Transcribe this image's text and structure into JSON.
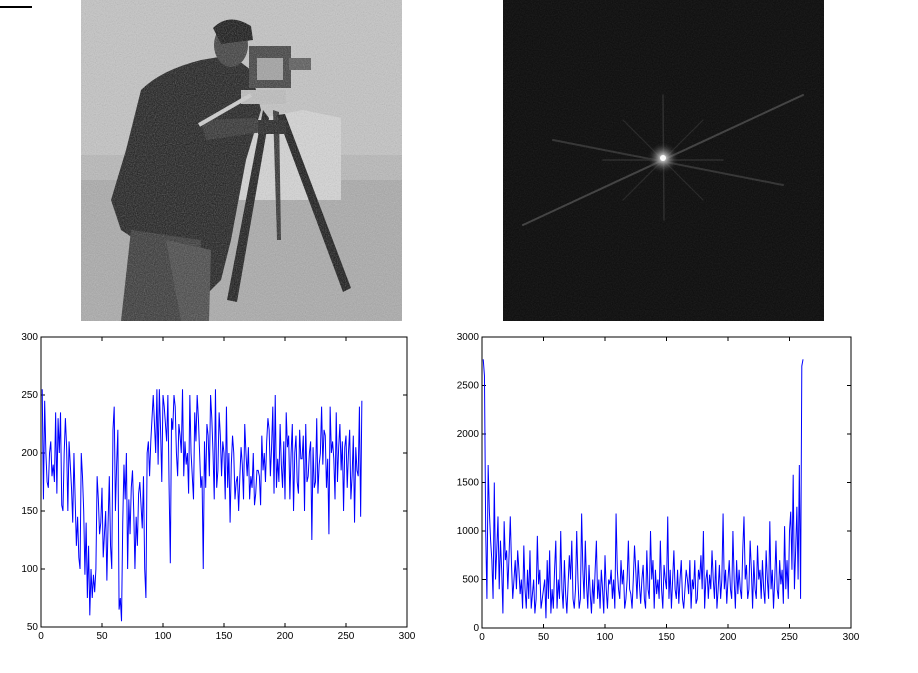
{
  "images": [
    {
      "name": "noisy-cameraman-photo"
    },
    {
      "name": "fft-magnitude-spectrum"
    }
  ],
  "chart_data": [
    {
      "type": "line",
      "color": "#0000ff",
      "xlim": [
        0,
        300
      ],
      "ylim": [
        50,
        300
      ],
      "xticks": [
        0,
        50,
        100,
        150,
        200,
        250,
        300
      ],
      "yticks": [
        50,
        100,
        150,
        200,
        250,
        300
      ],
      "x_start": 1,
      "y": [
        255,
        160,
        245,
        200,
        175,
        170,
        200,
        210,
        180,
        190,
        175,
        235,
        165,
        230,
        200,
        235,
        155,
        150,
        200,
        230,
        205,
        150,
        210,
        190,
        170,
        140,
        200,
        160,
        120,
        145,
        110,
        100,
        200,
        180,
        150,
        95,
        140,
        75,
        120,
        60,
        100,
        75,
        95,
        80,
        100,
        180,
        160,
        130,
        140,
        170,
        110,
        130,
        150,
        90,
        140,
        180,
        120,
        100,
        220,
        240,
        150,
        190,
        220,
        65,
        75,
        55,
        140,
        190,
        160,
        200,
        100,
        160,
        130,
        170,
        185,
        150,
        100,
        145,
        120,
        165,
        175,
        155,
        135,
        180,
        100,
        75,
        200,
        210,
        180,
        210,
        230,
        250,
        225,
        200,
        255,
        190,
        255,
        220,
        175,
        250,
        240,
        225,
        210,
        250,
        170,
        105,
        230,
        220,
        250,
        240,
        200,
        180,
        225,
        215,
        200,
        255,
        180,
        210,
        190,
        200,
        165,
        250,
        200,
        180,
        160,
        235,
        210,
        250,
        230,
        200,
        170,
        180,
        100,
        210,
        170,
        225,
        215,
        180,
        250,
        230,
        200,
        160,
        255,
        170,
        185,
        235,
        215,
        180,
        210,
        200,
        160,
        240,
        170,
        200,
        140,
        190,
        215,
        200,
        160,
        175,
        180,
        150,
        180,
        205,
        190,
        160,
        225,
        200,
        180,
        205,
        160,
        180,
        170,
        200,
        155,
        165,
        185,
        185,
        180,
        155,
        215,
        185,
        200,
        175,
        210,
        230,
        220,
        180,
        205,
        240,
        165,
        250,
        170,
        195,
        175,
        225,
        190,
        170,
        210,
        160,
        235,
        205,
        215,
        160,
        200,
        225,
        150,
        200,
        215,
        175,
        165,
        220,
        195,
        195,
        215,
        150,
        225,
        175,
        180,
        200,
        210,
        125,
        205,
        170,
        175,
        230,
        165,
        190,
        200,
        240,
        190,
        220,
        215,
        170,
        195,
        130,
        240,
        200,
        210,
        195,
        160,
        235,
        175,
        205,
        225,
        185,
        210,
        150,
        205,
        215,
        170,
        200,
        220,
        160,
        180,
        215,
        140,
        205,
        185,
        180,
        240,
        145,
        245
      ]
    },
    {
      "type": "line",
      "color": "#0000ff",
      "xlim": [
        0,
        300
      ],
      "ylim": [
        0,
        3000
      ],
      "xticks": [
        0,
        50,
        100,
        150,
        200,
        250,
        300
      ],
      "yticks": [
        0,
        500,
        1000,
        1500,
        2000,
        2500,
        3000
      ],
      "x_start": 1,
      "y": [
        2770,
        2600,
        1000,
        300,
        1680,
        1200,
        900,
        700,
        300,
        1500,
        500,
        800,
        1150,
        400,
        900,
        600,
        150,
        1100,
        700,
        800,
        400,
        750,
        1150,
        650,
        300,
        500,
        700,
        400,
        800,
        600,
        350,
        500,
        200,
        850,
        400,
        200,
        600,
        300,
        800,
        200,
        350,
        500,
        150,
        300,
        950,
        450,
        600,
        200,
        300,
        400,
        500,
        100,
        700,
        300,
        800,
        150,
        400,
        200,
        600,
        900,
        200,
        500,
        300,
        1000,
        400,
        200,
        700,
        350,
        150,
        450,
        750,
        500,
        900,
        300,
        200,
        400,
        1000,
        500,
        200,
        300,
        1180,
        600,
        300,
        900,
        450,
        200,
        650,
        350,
        150,
        500,
        250,
        600,
        900,
        300,
        500,
        200,
        600,
        400,
        150,
        750,
        400,
        200,
        500,
        450,
        600,
        300,
        500,
        200,
        1180,
        600,
        400,
        300,
        700,
        450,
        600,
        200,
        300,
        500,
        900,
        400,
        350,
        200,
        500,
        850,
        600,
        300,
        700,
        450,
        250,
        500,
        650,
        300,
        200,
        800,
        400,
        300,
        1000,
        500,
        700,
        200,
        600,
        350,
        500,
        300,
        900,
        400,
        200,
        650,
        500,
        400,
        1150,
        300,
        600,
        200,
        500,
        800,
        400,
        300,
        600,
        250,
        500,
        700,
        300,
        200,
        400,
        600,
        500,
        350,
        700,
        200,
        500,
        400,
        700,
        250,
        300,
        600,
        500,
        750,
        400,
        1000,
        200,
        500,
        600,
        300,
        550,
        400,
        800,
        500,
        300,
        700,
        200,
        400,
        650,
        300,
        500,
        1180,
        400,
        600,
        250,
        500,
        700,
        400,
        300,
        1000,
        500,
        200,
        700,
        350,
        600,
        400,
        300,
        800,
        1150,
        500,
        650,
        300,
        400,
        900,
        600,
        200,
        700,
        400,
        300,
        850,
        500,
        600,
        300,
        700,
        400,
        250,
        800,
        500,
        300,
        1100,
        400,
        600,
        200,
        500,
        900,
        400,
        300,
        700,
        450,
        600,
        250,
        1050,
        400,
        700,
        300,
        1000,
        1200,
        600,
        1580,
        400,
        800,
        1250,
        500,
        1680,
        300,
        2700,
        2770
      ]
    }
  ]
}
